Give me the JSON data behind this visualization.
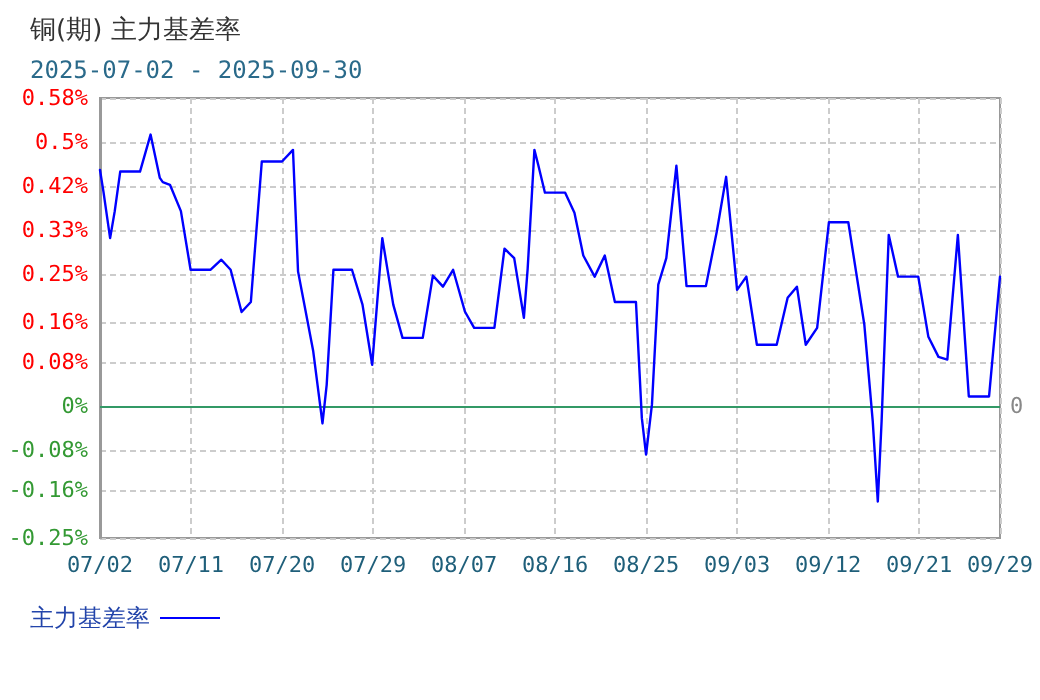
{
  "chart_data": {
    "type": "line",
    "title": "铜(期) 主力基差率",
    "subtitle": "2025-07-02 - 2025-09-30",
    "x": [
      "2025-07-02T00:00",
      "2025-07-02T08:00",
      "2025-07-03T00:00",
      "2025-07-03T11:00",
      "2025-07-04T00:00",
      "2025-07-05T23:00",
      "2025-07-07T00:00",
      "2025-07-07T22:00",
      "2025-07-08T05:00",
      "2025-07-08T22:00",
      "2025-07-10T00:00",
      "2025-07-10T23:00",
      "2025-07-12T22:00",
      "2025-07-14T00:00",
      "2025-07-14T22:00",
      "2025-07-16T00:00",
      "2025-07-16T22:00",
      "2025-07-18T00:00",
      "2025-07-20T00:00",
      "2025-07-21T02:00",
      "2025-07-21T14:00",
      "2025-07-23T02:00",
      "2025-07-24T00:00",
      "2025-07-24T10:00",
      "2025-07-25T02:00",
      "2025-07-26T22:00",
      "2025-07-27T23:00",
      "2025-07-28T22:00",
      "2025-07-29T22:00",
      "2025-07-31T00:00",
      "2025-07-31T22:00",
      "2025-08-02T22:00",
      "2025-08-03T22:00",
      "2025-08-04T22:00",
      "2025-08-05T22:00",
      "2025-08-07T02:00",
      "2025-08-08T00:00",
      "2025-08-10T00:00",
      "2025-08-11T00:00",
      "2025-08-11T23:00",
      "2025-08-12T22:00",
      "2025-08-13T07:00",
      "2025-08-13T23:00",
      "2025-08-14T08:00",
      "2025-08-15T00:00",
      "2025-08-17T00:00",
      "2025-08-17T22:00",
      "2025-08-18T19:00",
      "2025-08-19T22:00",
      "2025-08-20T22:00",
      "2025-08-21T22:00",
      "2025-08-24T00:00",
      "2025-08-24T14:00",
      "2025-08-25T00:00",
      "2025-08-25T14:00",
      "2025-08-26T05:00",
      "2025-08-27T00:00",
      "2025-08-28T00:00",
      "2025-08-29T00:00",
      "2025-08-30T22:00",
      "2025-09-01T00:00",
      "2025-09-01T22:00",
      "2025-09-03T00:00",
      "2025-09-03T22:00",
      "2025-09-04T23:00",
      "2025-09-06T22:00",
      "2025-09-08T00:00",
      "2025-09-08T22:00",
      "2025-09-09T19:00",
      "2025-09-10T22:00",
      "2025-09-12T02:00",
      "2025-09-14T00:00",
      "2025-09-15T14:00",
      "2025-09-16T10:00",
      "2025-09-16T22:00",
      "2025-09-17T07:00",
      "2025-09-18T00:00",
      "2025-09-18T22:00",
      "2025-09-20T22:00",
      "2025-09-21T22:00",
      "2025-09-22T22:00",
      "2025-09-23T19:00",
      "2025-09-24T20:00",
      "2025-09-25T22:00",
      "2025-09-27T22:00",
      "2025-09-29T00:00"
    ],
    "series": [
      {
        "name": "主力基差率",
        "color": "#0000ff",
        "values": [
          0.447,
          0.407,
          0.318,
          0.369,
          0.444,
          0.444,
          0.514,
          0.432,
          0.424,
          0.419,
          0.369,
          0.258,
          0.258,
          0.277,
          0.258,
          0.178,
          0.197,
          0.463,
          0.463,
          0.485,
          0.255,
          0.104,
          -0.033,
          0.04,
          0.258,
          0.258,
          0.192,
          0.078,
          0.318,
          0.192,
          0.129,
          0.129,
          0.247,
          0.226,
          0.258,
          0.179,
          0.148,
          0.148,
          0.298,
          0.28,
          0.167,
          0.26,
          0.485,
          0.457,
          0.404,
          0.404,
          0.366,
          0.285,
          0.245,
          0.285,
          0.197,
          0.197,
          -0.023,
          -0.092,
          0.003,
          0.23,
          0.28,
          0.455,
          0.227,
          0.227,
          0.331,
          0.434,
          0.22,
          0.245,
          0.116,
          0.116,
          0.205,
          0.226,
          0.116,
          0.148,
          0.348,
          0.348,
          0.154,
          -0.029,
          -0.181,
          -0.029,
          0.324,
          0.245,
          0.245,
          0.131,
          0.093,
          0.088,
          0.324,
          0.018,
          0.018,
          0.245
        ]
      }
    ],
    "xlim": [
      "2025-07-02",
      "2025-09-29"
    ],
    "xticks": [
      {
        "value": "2025-07-02",
        "label": "07/02"
      },
      {
        "value": "2025-07-11",
        "label": "07/11"
      },
      {
        "value": "2025-07-20",
        "label": "07/20"
      },
      {
        "value": "2025-07-29",
        "label": "07/29"
      },
      {
        "value": "2025-08-07",
        "label": "08/07"
      },
      {
        "value": "2025-08-16",
        "label": "08/16"
      },
      {
        "value": "2025-08-25",
        "label": "08/25"
      },
      {
        "value": "2025-09-03",
        "label": "09/03"
      },
      {
        "value": "2025-09-12",
        "label": "09/12"
      },
      {
        "value": "2025-09-21",
        "label": "09/21"
      },
      {
        "value": "2025-09-29",
        "label": "09/29"
      }
    ],
    "ylim": [
      -0.25,
      0.5833
    ],
    "yticks": [
      {
        "value": -0.25,
        "label": "-0.25%"
      },
      {
        "value": -0.16,
        "label": "-0.16%"
      },
      {
        "value": -0.0833,
        "label": "-0.08%"
      },
      {
        "value": 0,
        "label": "0%"
      },
      {
        "value": 0.0833,
        "label": "0.08%"
      },
      {
        "value": 0.16,
        "label": "0.16%"
      },
      {
        "value": 0.25,
        "label": "0.25%"
      },
      {
        "value": 0.3333,
        "label": "0.33%"
      },
      {
        "value": 0.4167,
        "label": "0.42%"
      },
      {
        "value": 0.5,
        "label": "0.5%"
      },
      {
        "value": 0.5833,
        "label": "0.58%"
      }
    ],
    "ref_lines": [
      {
        "axis": "y",
        "value": 0,
        "label": "0",
        "color": "#339966"
      }
    ],
    "grid": true,
    "legend": "bottom left",
    "marker": "none",
    "line_style": "solid"
  }
}
